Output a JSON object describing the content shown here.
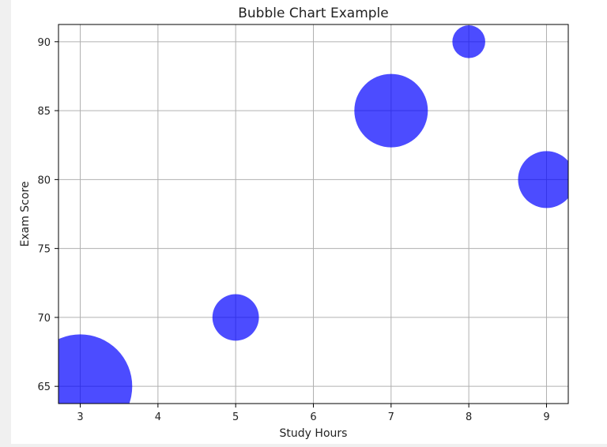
{
  "chart_data": {
    "type": "scatter",
    "title": "Bubble Chart Example",
    "xlabel": "Study Hours",
    "ylabel": "Exam Score",
    "xlim": [
      2.72,
      9.28
    ],
    "ylim": [
      63.75,
      91.25
    ],
    "xticks": [
      3,
      4,
      5,
      6,
      7,
      8,
      9
    ],
    "yticks": [
      65,
      70,
      75,
      80,
      85,
      90
    ],
    "grid": true,
    "series": [
      {
        "color": "#0000ff",
        "opacity": 0.7,
        "points": [
          {
            "x": 3,
            "y": 65,
            "size": 5000
          },
          {
            "x": 5,
            "y": 70,
            "size": 1000
          },
          {
            "x": 7,
            "y": 85,
            "size": 2500
          },
          {
            "x": 8,
            "y": 90,
            "size": 500
          },
          {
            "x": 9,
            "y": 80,
            "size": 1500
          }
        ]
      }
    ]
  },
  "colors": {
    "bubble": "#0000ff",
    "grid": "#b0b0b0",
    "axis": "#000000"
  }
}
